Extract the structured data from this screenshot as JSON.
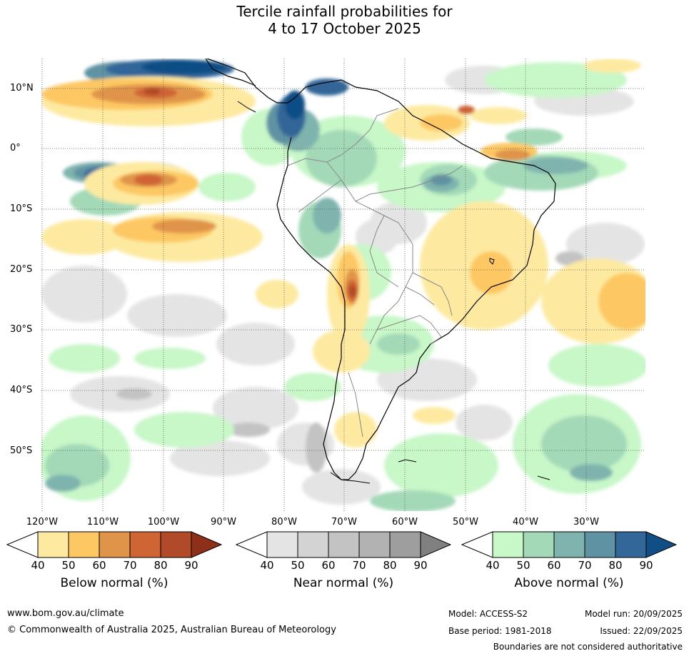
{
  "title": {
    "line1": "Tercile rainfall probabilities for",
    "line2": "4 to 17 October 2025"
  },
  "axes": {
    "lat_labels": [
      "10°N",
      "0°",
      "10°S",
      "20°S",
      "30°S",
      "40°S",
      "50°S"
    ],
    "lon_labels": [
      "120°W",
      "110°W",
      "100°W",
      "90°W",
      "80°W",
      "70°W",
      "60°W",
      "50°W",
      "40°W",
      "30°W"
    ]
  },
  "colorbars": {
    "below": {
      "label": "Below normal (%)",
      "ticks": [
        "40",
        "50",
        "60",
        "70",
        "80",
        "90"
      ],
      "colors": [
        "#ffffff",
        "#fdeaa0",
        "#fdc863",
        "#e0944a",
        "#cf6434",
        "#b04a28",
        "#8e2f1a"
      ]
    },
    "near": {
      "label": "Near normal (%)",
      "ticks": [
        "40",
        "50",
        "60",
        "70",
        "80",
        "90"
      ],
      "colors": [
        "#ffffff",
        "#e4e4e4",
        "#d3d3d3",
        "#c3c3c3",
        "#b2b2b2",
        "#9e9e9e",
        "#808080"
      ]
    },
    "above": {
      "label": "Above normal (%)",
      "ticks": [
        "40",
        "50",
        "60",
        "70",
        "80",
        "90"
      ],
      "colors": [
        "#ffffff",
        "#c8f7c8",
        "#a3d9b7",
        "#7fb4ae",
        "#5f93a3",
        "#336699",
        "#104e85"
      ]
    }
  },
  "footer": {
    "website": "www.bom.gov.au/climate",
    "copyright": "© Commonwealth of Australia 2025, Australian Bureau of Meteorology",
    "model": "Model: ACCESS-S2",
    "model_run": "Model run: 20/09/2025",
    "base_period": "Base period: 1981-2018",
    "issued": "Issued: 22/09/2025",
    "disclaimer": "Boundaries are not considered authoritative"
  }
}
